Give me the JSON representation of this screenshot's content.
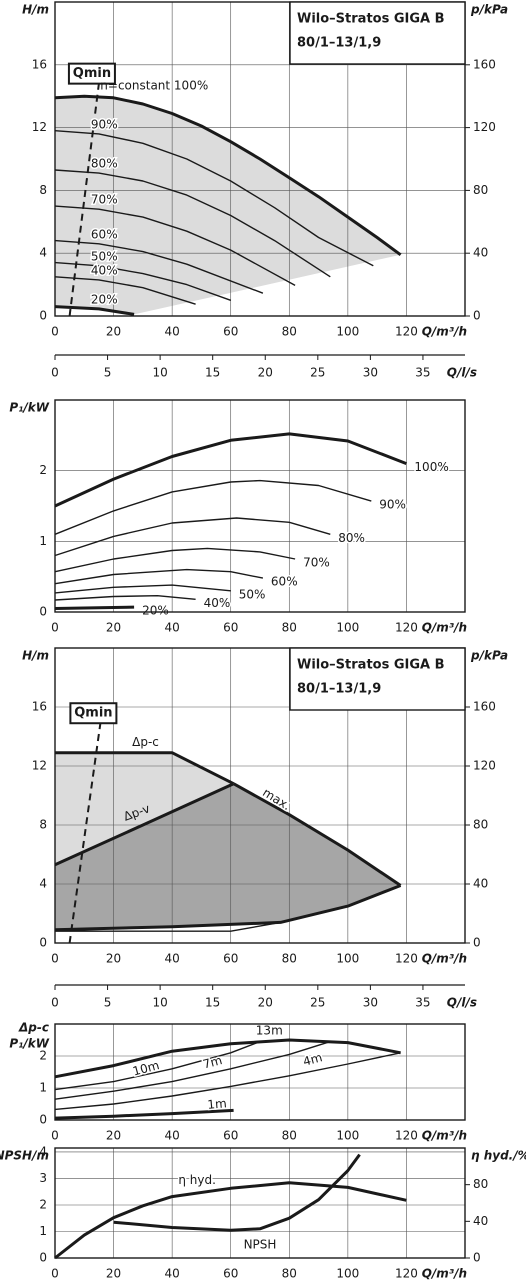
{
  "chart_data": [
    {
      "type": "line",
      "title": "Wilo–Stratos GIGA B",
      "subtitle": "80/1–13/1,9",
      "y_label": "H/m",
      "y2_label": "p/kPa",
      "x_label": "Q/m³/h",
      "xlim": [
        0,
        140
      ],
      "xticks": [
        0,
        20,
        40,
        60,
        80,
        100,
        120
      ],
      "ylim": [
        0,
        20
      ],
      "yticks": [
        0,
        4,
        8,
        12,
        16
      ],
      "y2lim": [
        0,
        200
      ],
      "y2ticks": [
        0,
        40,
        80,
        120,
        160
      ],
      "grid": true,
      "line_color": "#1a1a1a",
      "series": [
        {
          "name": "Qmin",
          "style": "dashed",
          "x": [
            5,
            15
          ],
          "values": [
            0,
            14.8
          ]
        },
        {
          "name": "n=constant 100%",
          "style": "thick",
          "fill": "#dcdcdc",
          "x": [
            0,
            10,
            20,
            30,
            40,
            50,
            60,
            70,
            80,
            90,
            100,
            110,
            118
          ],
          "values": [
            13.9,
            14,
            13.9,
            13.5,
            12.9,
            12.1,
            11.1,
            10,
            8.8,
            7.6,
            6.3,
            5,
            3.9
          ]
        },
        {
          "name": "90%",
          "style": "thin",
          "x": [
            0,
            15,
            30,
            45,
            60,
            75,
            90,
            108.7
          ],
          "values": [
            11.8,
            11.6,
            11.0,
            10.0,
            8.6,
            6.9,
            5.0,
            3.2
          ]
        },
        {
          "name": "80%",
          "style": "thin",
          "x": [
            0,
            15,
            30,
            45,
            60,
            75,
            94
          ],
          "values": [
            9.3,
            9.1,
            8.6,
            7.7,
            6.4,
            4.8,
            2.5
          ]
        },
        {
          "name": "70%",
          "style": "thin",
          "x": [
            0,
            15,
            30,
            45,
            60,
            82
          ],
          "values": [
            7.0,
            6.8,
            6.3,
            5.4,
            4.2,
            1.95
          ]
        },
        {
          "name": "60%",
          "style": "thin",
          "x": [
            0,
            15,
            30,
            45,
            71
          ],
          "values": [
            4.8,
            4.6,
            4.1,
            3.3,
            1.45
          ]
        },
        {
          "name": "50%",
          "style": "thin",
          "x": [
            0,
            15,
            30,
            45,
            60
          ],
          "values": [
            3.4,
            3.2,
            2.7,
            2.0,
            1.0
          ]
        },
        {
          "name": "40%",
          "style": "thin",
          "x": [
            0,
            15,
            30,
            48
          ],
          "values": [
            2.5,
            2.3,
            1.8,
            0.75
          ]
        },
        {
          "name": "20%",
          "style": "thick",
          "x": [
            0,
            15,
            27
          ],
          "values": [
            0.6,
            0.45,
            0.1
          ]
        }
      ]
    },
    {
      "type": "axis",
      "x_label": "Q/l/s",
      "xlim": [
        0,
        39
      ],
      "xticks": [
        0,
        5,
        10,
        15,
        20,
        25,
        30,
        35
      ]
    },
    {
      "type": "line",
      "y_label": "P₁/kW",
      "x_label": "Q/m³/h",
      "xlim": [
        0,
        140
      ],
      "xticks": [
        0,
        20,
        40,
        60,
        80,
        100,
        120
      ],
      "ylim": [
        0,
        3
      ],
      "yticks": [
        0,
        1,
        2
      ],
      "grid": true,
      "line_color": "#1a1a1a",
      "series": [
        {
          "name": "100%",
          "style": "thick",
          "x": [
            0,
            20,
            40,
            60,
            80,
            100,
            120
          ],
          "values": [
            1.5,
            1.88,
            2.2,
            2.43,
            2.52,
            2.42,
            2.1
          ]
        },
        {
          "name": "90%",
          "style": "thin",
          "x": [
            0,
            20,
            40,
            60,
            70,
            90,
            108
          ],
          "values": [
            1.1,
            1.43,
            1.7,
            1.84,
            1.86,
            1.79,
            1.57
          ]
        },
        {
          "name": "80%",
          "style": "thin",
          "x": [
            0,
            20,
            40,
            62,
            80,
            94
          ],
          "values": [
            0.8,
            1.07,
            1.26,
            1.33,
            1.27,
            1.1
          ]
        },
        {
          "name": "70%",
          "style": "thin",
          "x": [
            0,
            20,
            40,
            52,
            70,
            82
          ],
          "values": [
            0.57,
            0.75,
            0.87,
            0.9,
            0.85,
            0.75
          ]
        },
        {
          "name": "60%",
          "style": "thin",
          "x": [
            0,
            20,
            45,
            60,
            71
          ],
          "values": [
            0.4,
            0.53,
            0.6,
            0.57,
            0.48
          ]
        },
        {
          "name": "50%",
          "style": "thin",
          "x": [
            0,
            20,
            40,
            60
          ],
          "values": [
            0.27,
            0.35,
            0.38,
            0.3
          ]
        },
        {
          "name": "40%",
          "style": "thin",
          "x": [
            0,
            20,
            35,
            48
          ],
          "values": [
            0.17,
            0.22,
            0.23,
            0.18
          ]
        },
        {
          "name": "20%",
          "style": "thick",
          "x": [
            0,
            27
          ],
          "values": [
            0.05,
            0.07
          ]
        }
      ]
    },
    {
      "type": "line",
      "title": "Wilo–Stratos GIGA B",
      "subtitle": "80/1–13/1,9",
      "y_label": "H/m",
      "y2_label": "p/kPa",
      "x_label": "Q/m³/h",
      "xlim": [
        0,
        140
      ],
      "xticks": [
        0,
        20,
        40,
        60,
        80,
        100,
        120
      ],
      "ylim": [
        0,
        20
      ],
      "yticks": [
        0,
        4,
        8,
        12,
        16
      ],
      "y2lim": [
        0,
        200
      ],
      "y2ticks": [
        0,
        40,
        80,
        120,
        160
      ],
      "grid": true,
      "line_color": "#1a1a1a",
      "series": [
        {
          "name": "Qmin",
          "style": "dashed",
          "x": [
            5,
            15.5
          ],
          "values": [
            0,
            14.9
          ]
        },
        {
          "name": "Δp-c",
          "style": "thick",
          "fill": "#dcdcdc",
          "x": [
            0,
            40,
            61
          ],
          "values": [
            12.9,
            12.9,
            10.8
          ]
        },
        {
          "name": "Δp-v",
          "style": "thick",
          "fill": "#a6a6a6",
          "x": [
            0,
            30,
            61
          ],
          "values": [
            5.3,
            8.0,
            10.8
          ]
        },
        {
          "name": "max.",
          "style": "thick",
          "x": [
            61,
            80,
            100,
            118
          ],
          "values": [
            10.8,
            8.7,
            6.3,
            3.9
          ]
        },
        {
          "style": "thin",
          "x": [
            0,
            60,
            77
          ],
          "values": [
            0.8,
            0.8,
            1.4
          ]
        },
        {
          "style": "thick",
          "x": [
            0,
            40,
            77,
            100,
            118
          ],
          "values": [
            0.9,
            1.1,
            1.4,
            2.5,
            3.9
          ]
        }
      ]
    },
    {
      "type": "axis",
      "x_label": "Q/l/s",
      "xlim": [
        0,
        39
      ],
      "xticks": [
        0,
        5,
        10,
        15,
        20,
        25,
        30,
        35
      ]
    },
    {
      "type": "line",
      "y_label_note": "Δp-c",
      "y_label": "P₁/kW",
      "x_label": "Q/m³/h",
      "xlim": [
        0,
        140
      ],
      "xticks": [
        0,
        20,
        40,
        60,
        80,
        100,
        120
      ],
      "ylim": [
        0,
        3
      ],
      "yticks": [
        0,
        1,
        2
      ],
      "grid": true,
      "line_color": "#1a1a1a",
      "series": [
        {
          "name": "13m",
          "style": "thick",
          "x": [
            0,
            20,
            40,
            60,
            80,
            100,
            118
          ],
          "values": [
            1.35,
            1.7,
            2.15,
            2.38,
            2.5,
            2.42,
            2.1
          ]
        },
        {
          "name": "10m",
          "style": "thin",
          "x": [
            0,
            20,
            40,
            60,
            70
          ],
          "values": [
            0.95,
            1.2,
            1.6,
            2.1,
            2.45
          ]
        },
        {
          "name": "7m",
          "style": "thin",
          "x": [
            0,
            20,
            40,
            60,
            80,
            94
          ],
          "values": [
            0.65,
            0.9,
            1.2,
            1.6,
            2.05,
            2.45
          ]
        },
        {
          "name": "4m",
          "style": "thin",
          "x": [
            0,
            20,
            40,
            60,
            80,
            100,
            118
          ],
          "values": [
            0.33,
            0.5,
            0.75,
            1.05,
            1.38,
            1.75,
            2.1
          ]
        },
        {
          "name": "1m",
          "style": "thick",
          "x": [
            0,
            20,
            40,
            61
          ],
          "values": [
            0.06,
            0.12,
            0.2,
            0.3
          ]
        }
      ]
    },
    {
      "type": "line",
      "y_label": "NPSH/m",
      "y2_label": "η hyd./%",
      "x_label": "Q/m³/h",
      "xlim": [
        0,
        140
      ],
      "xticks": [
        0,
        20,
        40,
        60,
        80,
        100,
        120
      ],
      "ylim": [
        0,
        4.15
      ],
      "yticks": [
        0,
        1,
        2,
        3,
        4
      ],
      "y2lim": [
        0,
        120
      ],
      "y2ticks": [
        0,
        40,
        80
      ],
      "grid": true,
      "line_color": "#1a1a1a",
      "series": [
        {
          "name": "η hyd.",
          "style": "thick",
          "axis": "y2",
          "x": [
            0,
            10,
            20,
            30,
            40,
            60,
            80,
            100,
            120
          ],
          "values": [
            0,
            25,
            44,
            57,
            67,
            76,
            82,
            77,
            63
          ]
        },
        {
          "name": "NPSH",
          "style": "thick",
          "x": [
            20,
            40,
            60,
            70,
            80,
            90,
            100,
            104
          ],
          "values": [
            1.35,
            1.15,
            1.05,
            1.1,
            1.5,
            2.2,
            3.3,
            3.9
          ]
        }
      ]
    }
  ]
}
